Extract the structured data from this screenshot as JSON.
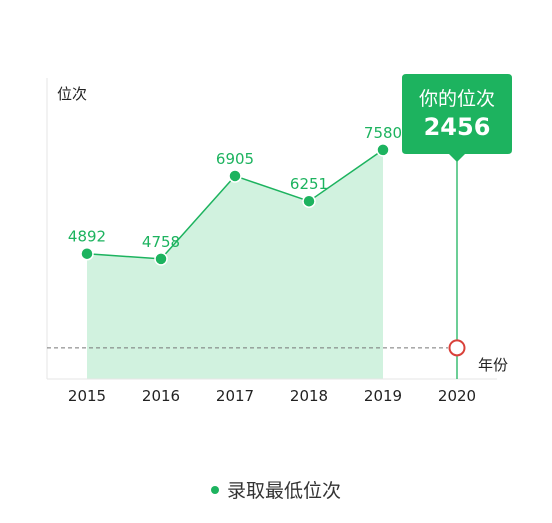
{
  "chart_data": {
    "type": "area",
    "ylabel": "位次",
    "xlabel": "年份",
    "categories": [
      "2015",
      "2016",
      "2017",
      "2018",
      "2019",
      "2020"
    ],
    "series": [
      {
        "name": "录取最低位次",
        "x": [
          "2015",
          "2016",
          "2017",
          "2018",
          "2019"
        ],
        "values": [
          4892,
          4758,
          6905,
          6251,
          7580
        ]
      }
    ],
    "user_rank": {
      "title": "你的位次",
      "value": 2456,
      "x": "2020"
    },
    "ylim": [
      -2000,
      9000
    ],
    "grid": false,
    "legend_position": "bottom-center"
  },
  "colors": {
    "line": "#1db35f",
    "area": "#d1f2df",
    "callout": "#1db35f",
    "marker_ring": "#d9413a",
    "reference_line": "#777777",
    "axis": "#e6e6e6"
  }
}
